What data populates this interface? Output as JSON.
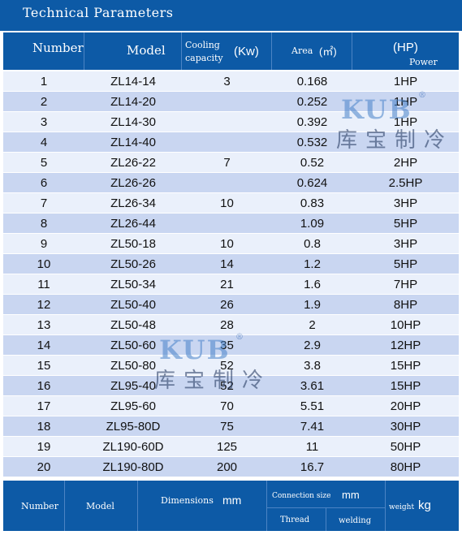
{
  "title": "Technical Parameters",
  "headers": {
    "number": "Number",
    "model": "Model",
    "cooling_line1": "Cooling",
    "cooling_line2": "capacity",
    "cooling_unit": "(Kw)",
    "area": "Area",
    "area_unit": "(㎡)",
    "power_unit": "(HP)",
    "power": "Power"
  },
  "rows": [
    {
      "number": "1",
      "model": "ZL14-14",
      "cooling": "3",
      "area": "0.168",
      "power": "1HP"
    },
    {
      "number": "2",
      "model": "ZL14-20",
      "cooling": "",
      "area": "0.252",
      "power": "1HP"
    },
    {
      "number": "3",
      "model": "ZL14-30",
      "cooling": "",
      "area": "0.392",
      "power": "1HP"
    },
    {
      "number": "4",
      "model": "ZL14-40",
      "cooling": "",
      "area": "0.532",
      "power": ""
    },
    {
      "number": "5",
      "model": "ZL26-22",
      "cooling": "7",
      "area": "0.52",
      "power": "2HP"
    },
    {
      "number": "6",
      "model": "ZL26-26",
      "cooling": "",
      "area": "0.624",
      "power": "2.5HP"
    },
    {
      "number": "7",
      "model": "ZL26-34",
      "cooling": "10",
      "area": "0.83",
      "power": "3HP"
    },
    {
      "number": "8",
      "model": "ZL26-44",
      "cooling": "",
      "area": "1.09",
      "power": "5HP"
    },
    {
      "number": "9",
      "model": "ZL50-18",
      "cooling": "10",
      "area": "0.8",
      "power": "3HP"
    },
    {
      "number": "10",
      "model": "ZL50-26",
      "cooling": "14",
      "area": "1.2",
      "power": "5HP"
    },
    {
      "number": "11",
      "model": "ZL50-34",
      "cooling": "21",
      "area": "1.6",
      "power": "7HP"
    },
    {
      "number": "12",
      "model": "ZL50-40",
      "cooling": "26",
      "area": "1.9",
      "power": "8HP"
    },
    {
      "number": "13",
      "model": "ZL50-48",
      "cooling": "28",
      "area": "2",
      "power": "10HP"
    },
    {
      "number": "14",
      "model": "ZL50-60",
      "cooling": "35",
      "area": "2.9",
      "power": "12HP"
    },
    {
      "number": "15",
      "model": "ZL50-80",
      "cooling": "52",
      "area": "3.8",
      "power": "15HP"
    },
    {
      "number": "16",
      "model": "ZL95-40",
      "cooling": "52",
      "area": "3.61",
      "power": "15HP"
    },
    {
      "number": "17",
      "model": "ZL95-60",
      "cooling": "70",
      "area": "5.51",
      "power": "20HP"
    },
    {
      "number": "18",
      "model": "ZL95-80D",
      "cooling": "75",
      "area": "7.41",
      "power": "30HP"
    },
    {
      "number": "19",
      "model": "ZL190-60D",
      "cooling": "125",
      "area": "11",
      "power": "50HP"
    },
    {
      "number": "20",
      "model": "ZL190-80D",
      "cooling": "200",
      "area": "16.7",
      "power": "80HP"
    }
  ],
  "watermark": {
    "logo": "KUB",
    "registered": "®",
    "chinese": "库宝制冷"
  },
  "footer": {
    "number": "Number",
    "model": "Model",
    "dimensions": "Dimensions",
    "dimensions_unit": "mm",
    "connection": "Connection size",
    "connection_unit": "mm",
    "thread": "Thread",
    "welding": "welding",
    "weight": "weight",
    "weight_unit": "kg"
  },
  "colors": {
    "header_blue": "#0d5aa6",
    "row_light": "#eaf0fb",
    "row_dark": "#c9d6f1"
  }
}
